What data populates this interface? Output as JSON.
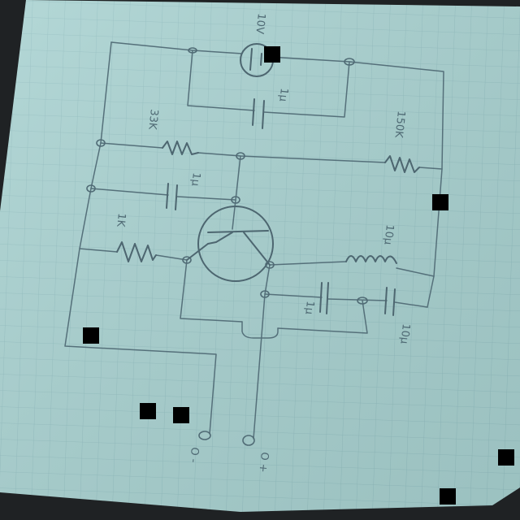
{
  "labels": {
    "battery": "10V",
    "cap_top": "1μ",
    "res_33k": "33K",
    "res_150k": "150K",
    "cap_mid": "1μ",
    "res_1k": "1K",
    "inductor": "10μ",
    "cap_out1": "1μ",
    "cap_out2": "10μ",
    "terminal_minus": "O -",
    "terminal_plus": "O +"
  },
  "colors": {
    "paper": "#a9d2d1",
    "grid": "#8fbcbf",
    "ink": "#4d6670",
    "background": "#1f2224",
    "mask": "#000000"
  }
}
